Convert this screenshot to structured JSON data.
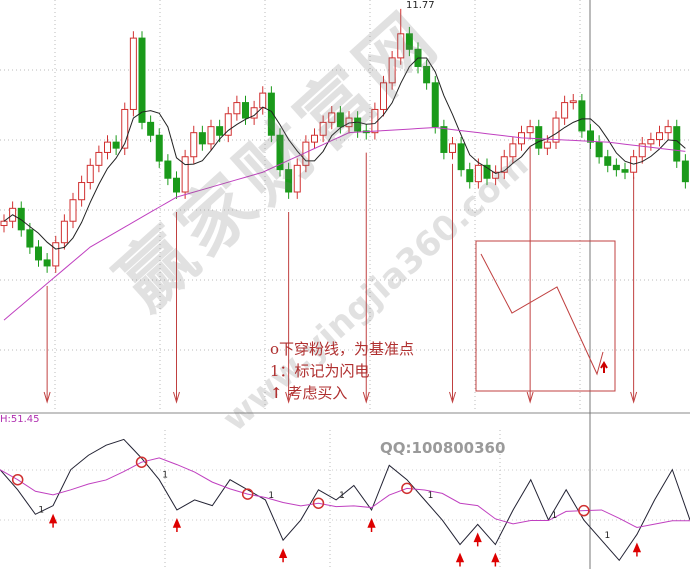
{
  "chart_data": {
    "type": "candlestick",
    "price_closes": [
      9.3,
      9.45,
      9.2,
      9.0,
      8.85,
      8.78,
      9.05,
      9.3,
      9.55,
      9.75,
      9.95,
      10.1,
      10.22,
      10.15,
      10.6,
      11.43,
      10.45,
      10.3,
      10.0,
      9.8,
      9.64,
      10.05,
      10.33,
      10.2,
      10.4,
      10.3,
      10.55,
      10.68,
      10.5,
      10.62,
      10.79,
      10.3,
      9.9,
      9.64,
      9.95,
      10.22,
      10.3,
      10.45,
      10.56,
      10.4,
      10.5,
      10.35,
      10.33,
      10.6,
      10.91,
      11.2,
      11.48,
      11.3,
      11.1,
      10.91,
      10.4,
      10.1,
      10.2,
      9.9,
      9.76,
      9.95,
      9.8,
      9.87,
      10.05,
      10.2,
      10.33,
      10.4,
      10.15,
      10.22,
      10.5,
      10.68,
      10.7,
      10.35,
      10.22,
      10.05,
      9.95,
      9.9,
      9.87,
      10.05,
      10.2,
      10.25,
      10.33,
      10.4,
      10.0,
      9.76
    ],
    "ma_long_sampled_every_10": [
      8.15,
      9.0,
      9.58,
      9.87,
      10.33,
      10.39,
      10.27,
      10.22,
      10.1
    ],
    "peak_high": 11.77,
    "peak_label": "11.77",
    "up_color": "#d03030",
    "down_color": "#1a9a1a",
    "ma_short_color": "#222222",
    "ma_long_color": "#c040c0",
    "indicator": {
      "header": "H:51.45",
      "values": [
        69,
        55,
        38,
        44,
        69,
        79,
        86,
        90,
        77,
        62,
        41,
        48,
        44,
        62,
        55,
        48,
        20,
        34,
        55,
        48,
        58,
        41,
        72,
        62,
        48,
        34,
        17,
        31,
        17,
        41,
        62,
        34,
        55,
        34,
        20,
        6,
        24,
        48,
        69,
        34
      ],
      "circle_indices": [
        1,
        8,
        14,
        18,
        23,
        33
      ],
      "arrow_indices": [
        3,
        10,
        16,
        21,
        26,
        27,
        28,
        36
      ],
      "flash_indices": [
        2,
        9,
        15,
        19,
        24,
        31,
        34,
        39
      ],
      "flash_label": "1"
    },
    "signal_arrow_candles": [
      5,
      20,
      33,
      42,
      52,
      61,
      73
    ]
  },
  "legend": {
    "line1": "o下穿粉线，为基准点",
    "line2": "1：标记为闪电",
    "line3": "考虑买入",
    "arrow_glyph": "↑"
  },
  "watermark": {
    "cn": "赢家财富网",
    "url": "www.yingjia360.com"
  },
  "qq": "QQ:100800360"
}
